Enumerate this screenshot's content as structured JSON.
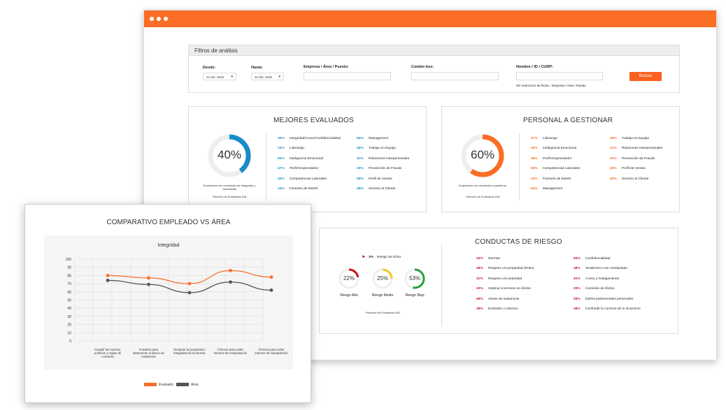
{
  "filters": {
    "title": "Filtros de análisis",
    "desde_label": "Desde:",
    "desde_value": "21 feb. 2019",
    "hasta_label": "Hasta:",
    "hasta_value": "21 feb. 2020",
    "empresa_label": "Empresa / Área / Puesto:",
    "combo_label": "Combo box:",
    "nombre_label": "Nombre / ID / CURP:",
    "button": "Buscar",
    "note": "Sin restricción de fecha - Empresa / Área / Puesto"
  },
  "mejores": {
    "title": "MEJORES EVALUADOS",
    "gauge_value": "40%",
    "gauge_pct": 40,
    "caption": "Empleados con resultados de Integridad y Honestidad",
    "evaluados": "*Número de Evaluados 618",
    "items_left": [
      {
        "pct": "40%",
        "label": "Integridad/Acoso/Confidencialidad"
      },
      {
        "pct": "22%",
        "label": "Liderazgo"
      },
      {
        "pct": "50%",
        "label": "Inteligencia Emocional"
      },
      {
        "pct": "47%",
        "label": "Perfil Emprendedor"
      },
      {
        "pct": "40%",
        "label": "Competencias Laborales"
      },
      {
        "pct": "44%",
        "label": "Factores de Estrés"
      }
    ],
    "items_right": [
      {
        "pct": "84%",
        "label": "Management"
      },
      {
        "pct": "40%",
        "label": "Trabajo en Equipo"
      },
      {
        "pct": "41%",
        "label": "Relaciones Interpersonales"
      },
      {
        "pct": "20%",
        "label": "Prevención de Fraude"
      },
      {
        "pct": "69%",
        "label": "Perfil de Ventas"
      },
      {
        "pct": "40%",
        "label": "Servicio al Cliente"
      }
    ]
  },
  "gestionar": {
    "title": "PERSONAL A GESTIONAR",
    "gauge_value": "60%",
    "gauge_pct": 60,
    "caption": "Empleados con resultados a gestionar",
    "evaluados": "*Número de Evaluados 618",
    "items_left": [
      {
        "pct": "47%",
        "label": "Liderazgo"
      },
      {
        "pct": "46%",
        "label": "Inteligencia Emocional"
      },
      {
        "pct": "55%",
        "label": "Perfil Emprendedor"
      },
      {
        "pct": "56%",
        "label": "Competencias Laborales"
      },
      {
        "pct": "44%",
        "label": "Factores de Estrés"
      },
      {
        "pct": "84%",
        "label": "Management"
      }
    ],
    "items_right": [
      {
        "pct": "48%",
        "label": "Trabajo en Equipo"
      },
      {
        "pct": "41%",
        "label": "Relaciones Interpersonales"
      },
      {
        "pct": "20%",
        "label": "Prevención de Fraude"
      },
      {
        "pct": "49%",
        "label": "Perfil de Ventas"
      },
      {
        "pct": "40%",
        "label": "Servicio al Cliente"
      }
    ]
  },
  "conductas": {
    "title": "CONDUCTAS DE RIESGO",
    "ilicito_pct": "3%",
    "ilicito_label": "Riesgo de Ilícito",
    "gauges": [
      {
        "value": "22%",
        "pct": 22,
        "label": "Riesgo Alto",
        "color": "#c8141e"
      },
      {
        "value": "25%",
        "pct": 25,
        "label": "Riesgo Medio",
        "color": "#f0c81e"
      },
      {
        "value": "53%",
        "pct": 53,
        "label": "Riesgo Bajo",
        "color": "#28a03c"
      }
    ],
    "evaluados": "*Número de Evaluados 618",
    "items_left": [
      {
        "pct": "44%",
        "label": "Normas"
      },
      {
        "pct": "48%",
        "label": "Respeto a la propiedad (Robo)"
      },
      {
        "pct": "41%",
        "label": "Respeto a la autoridad"
      },
      {
        "pct": "20%",
        "label": "Implicar a terceros en ilícitos"
      },
      {
        "pct": "59%",
        "label": "Abuso de sustancias"
      },
      {
        "pct": "49%",
        "label": "Extorsión o soborno"
      }
    ],
    "items_right": [
      {
        "pct": "84%",
        "label": "Confidencialidad"
      },
      {
        "pct": "48%",
        "label": "Tendencia a ser manipulado"
      },
      {
        "pct": "41%",
        "label": "Acoso y hostigamiento"
      },
      {
        "pct": "20%",
        "label": "Comisión de Ilícitos"
      },
      {
        "pct": "59%",
        "label": "Daños patrimoniales personales"
      },
      {
        "pct": "49%",
        "label": "Confundir lo correcto de lo incorrecto"
      }
    ]
  },
  "comparativo": {
    "title": "COMPARATIVO EMPLEADO VS ÁREA",
    "legend_evaluado": "Evaluado",
    "legend_area": "Área"
  },
  "chart_data": {
    "type": "line",
    "title": "Integridad",
    "categories": [
      "Cumplir las normas, políticas y reglas de conducta",
      "Fortaleza para abstenerse al abuso de sustancias",
      "Respetar la propiedad e integridad de los demás",
      "Firmeza para evitar intentos de manipulación",
      "Firmeza para evitar intentos de manipulación"
    ],
    "yticks": [
      "0",
      "10",
      "20",
      "30",
      "40",
      "50",
      "60",
      "70",
      "80",
      "90",
      "100"
    ],
    "ylim": [
      0,
      100
    ],
    "series": [
      {
        "name": "Evaluado",
        "color": "#fa6e25",
        "values": [
          80,
          77,
          70,
          86,
          78
        ]
      },
      {
        "name": "Área",
        "color": "#555555",
        "values": [
          74,
          69,
          59,
          72,
          62
        ]
      }
    ],
    "grid": true
  }
}
